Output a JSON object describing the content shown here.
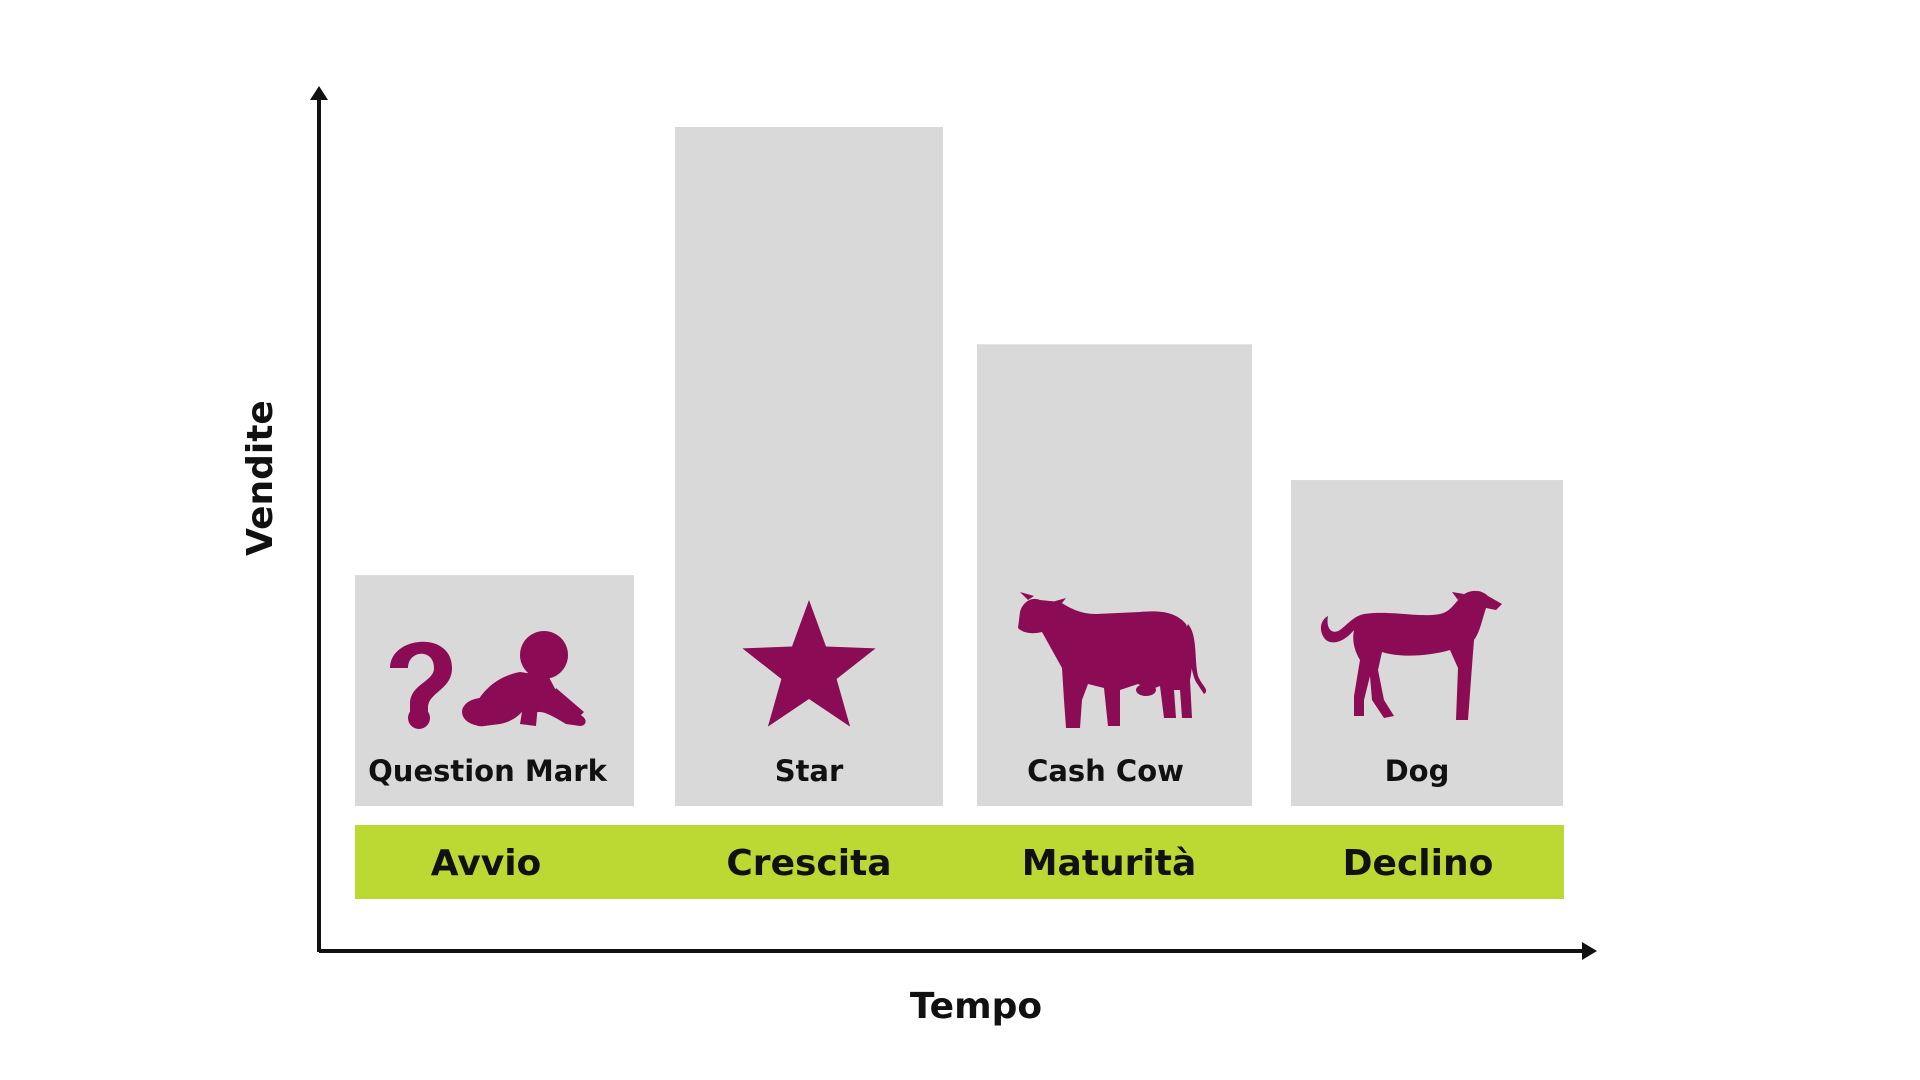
{
  "colors": {
    "bar": "#d9d9d9",
    "stage_band": "#bcd933",
    "icon": "#8b0b55",
    "axis": "#111111"
  },
  "chart_data": {
    "type": "bar",
    "title": "",
    "xlabel": "Tempo",
    "ylabel": "Vendite",
    "ylim": [
      0,
      100
    ],
    "categories": [
      "Avvio",
      "Crescita",
      "Maturità",
      "Declino"
    ],
    "values": [
      34,
      100,
      68,
      48
    ],
    "bar_labels": [
      "Question Mark",
      "Star",
      "Cash Cow",
      "Dog"
    ],
    "icons": [
      "question-baby-icon",
      "star-icon",
      "cow-icon",
      "dog-icon"
    ],
    "grid": false,
    "legend": "none"
  }
}
